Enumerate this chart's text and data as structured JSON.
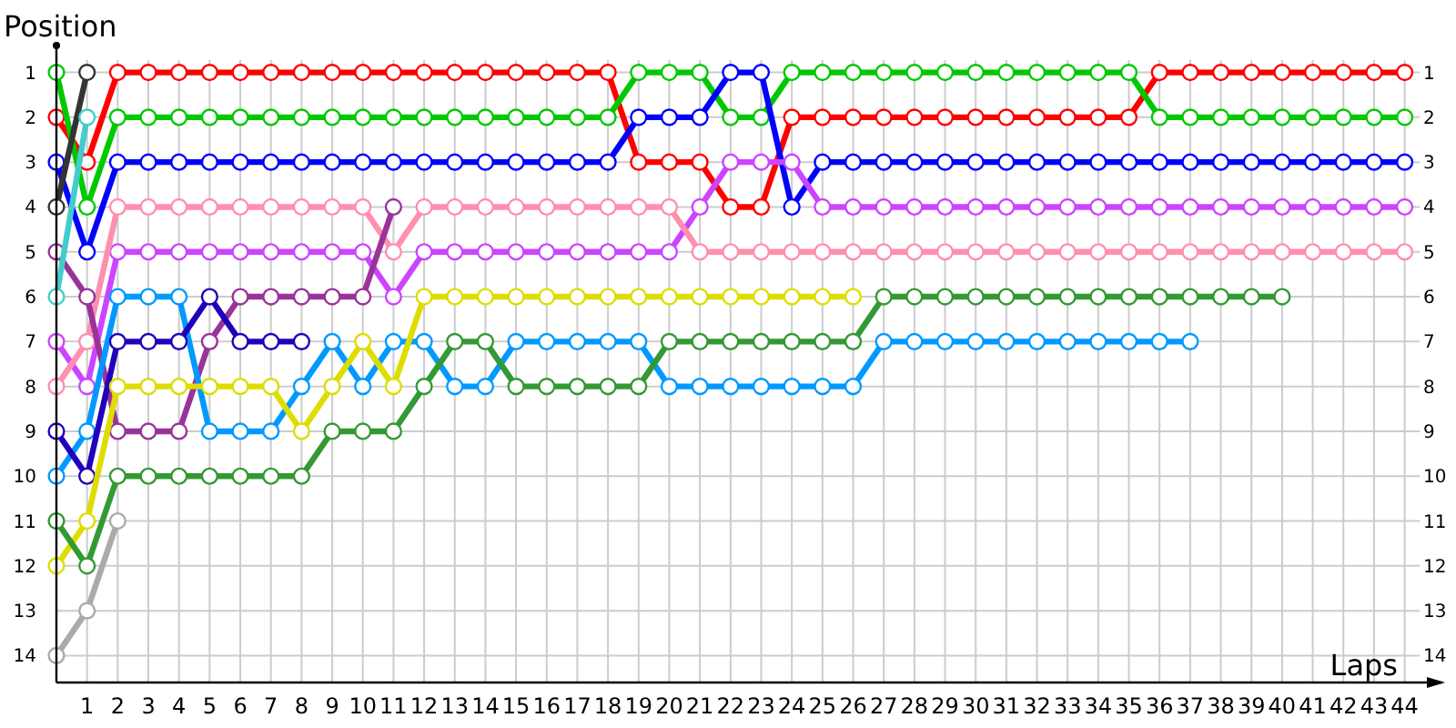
{
  "chart_data": {
    "type": "line",
    "xlabel": "Laps",
    "ylabel": "Position",
    "marker": "circle",
    "line_style": "solid",
    "grid": true,
    "x": [
      0,
      1,
      2,
      3,
      4,
      5,
      6,
      7,
      8,
      9,
      10,
      11,
      12,
      13,
      14,
      15,
      16,
      17,
      18,
      19,
      20,
      21,
      22,
      23,
      24,
      25,
      26,
      27,
      28,
      29,
      30,
      31,
      32,
      33,
      34,
      35,
      36,
      37,
      38,
      39,
      40,
      41,
      42,
      43,
      44
    ],
    "xlim": [
      0,
      45.2
    ],
    "xticks": [
      1,
      2,
      3,
      4,
      5,
      6,
      7,
      8,
      9,
      10,
      11,
      12,
      13,
      14,
      15,
      16,
      17,
      18,
      19,
      20,
      21,
      22,
      23,
      24,
      25,
      26,
      27,
      28,
      29,
      30,
      31,
      32,
      33,
      34,
      35,
      36,
      37,
      38,
      39,
      40,
      41,
      42,
      43,
      44
    ],
    "ylim": [
      14.6,
      0.4
    ],
    "yticks": [
      1,
      2,
      3,
      4,
      5,
      6,
      7,
      8,
      9,
      10,
      11,
      12,
      13,
      14
    ],
    "y2lim": [
      14.6,
      0.4
    ],
    "y2ticks": [
      1,
      2,
      3,
      4,
      5,
      6,
      7,
      8,
      9,
      10,
      11,
      12,
      13,
      14
    ],
    "series": [
      {
        "color": "#ff0000",
        "values": [
          2,
          3,
          1,
          1,
          1,
          1,
          1,
          1,
          1,
          1,
          1,
          1,
          1,
          1,
          1,
          1,
          1,
          1,
          1,
          3,
          3,
          3,
          4,
          4,
          2,
          2,
          2,
          2,
          2,
          2,
          2,
          2,
          2,
          2,
          2,
          2,
          1,
          1,
          1,
          1,
          1,
          1,
          1,
          1,
          1
        ]
      },
      {
        "color": "#00c800",
        "values": [
          1,
          4,
          2,
          2,
          2,
          2,
          2,
          2,
          2,
          2,
          2,
          2,
          2,
          2,
          2,
          2,
          2,
          2,
          2,
          1,
          1,
          1,
          2,
          2,
          1,
          1,
          1,
          1,
          1,
          1,
          1,
          1,
          1,
          1,
          1,
          1,
          2,
          2,
          2,
          2,
          2,
          2,
          2,
          2,
          2
        ]
      },
      {
        "color": "#0000ff",
        "values": [
          3,
          5,
          3,
          3,
          3,
          3,
          3,
          3,
          3,
          3,
          3,
          3,
          3,
          3,
          3,
          3,
          3,
          3,
          3,
          2,
          2,
          2,
          1,
          1,
          4,
          3,
          3,
          3,
          3,
          3,
          3,
          3,
          3,
          3,
          3,
          3,
          3,
          3,
          3,
          3,
          3,
          3,
          3,
          3,
          3
        ]
      },
      {
        "color": "#cc44ff",
        "values": [
          7,
          8,
          5,
          5,
          5,
          5,
          5,
          5,
          5,
          5,
          5,
          6,
          5,
          5,
          5,
          5,
          5,
          5,
          5,
          5,
          5,
          4,
          3,
          3,
          3,
          4,
          4,
          4,
          4,
          4,
          4,
          4,
          4,
          4,
          4,
          4,
          4,
          4,
          4,
          4,
          4,
          4,
          4,
          4,
          4
        ]
      },
      {
        "color": "#ff8fae",
        "values": [
          8,
          7,
          4,
          4,
          4,
          4,
          4,
          4,
          4,
          4,
          4,
          5,
          4,
          4,
          4,
          4,
          4,
          4,
          4,
          4,
          4,
          5,
          5,
          5,
          5,
          5,
          5,
          5,
          5,
          5,
          5,
          5,
          5,
          5,
          5,
          5,
          5,
          5,
          5,
          5,
          5,
          5,
          5,
          5,
          5
        ]
      },
      {
        "color": "#993399",
        "values": [
          5,
          6,
          9,
          9,
          9,
          7,
          6,
          6,
          6,
          6,
          6,
          4,
          null,
          null,
          null,
          null,
          null,
          null,
          null,
          null,
          null,
          null,
          null,
          null,
          null,
          null,
          null,
          null,
          null,
          null,
          null,
          null,
          null,
          null,
          null,
          null,
          null,
          null,
          null,
          null,
          null,
          null,
          null,
          null,
          null
        ]
      },
      {
        "color": "#0099ff",
        "values": [
          10,
          9,
          6,
          6,
          6,
          9,
          9,
          9,
          8,
          7,
          8,
          7,
          7,
          8,
          8,
          7,
          7,
          7,
          7,
          7,
          8,
          8,
          8,
          8,
          8,
          8,
          8,
          7,
          7,
          7,
          7,
          7,
          7,
          7,
          7,
          7,
          7,
          7,
          null,
          null,
          null,
          null,
          null,
          null,
          null
        ]
      },
      {
        "color": "#2200bb",
        "values": [
          9,
          10,
          7,
          7,
          7,
          6,
          7,
          7,
          7,
          null,
          null,
          null,
          null,
          null,
          null,
          null,
          null,
          null,
          null,
          null,
          null,
          null,
          null,
          null,
          null,
          null,
          null,
          null,
          null,
          null,
          null,
          null,
          null,
          null,
          null,
          null,
          null,
          null,
          null,
          null,
          null,
          null,
          null,
          null,
          null
        ]
      },
      {
        "color": "#dddd00",
        "values": [
          12,
          11,
          8,
          8,
          8,
          8,
          8,
          8,
          9,
          8,
          7,
          8,
          6,
          6,
          6,
          6,
          6,
          6,
          6,
          6,
          6,
          6,
          6,
          6,
          6,
          6,
          6,
          null,
          null,
          null,
          null,
          null,
          null,
          null,
          null,
          null,
          null,
          null,
          null,
          null,
          null,
          null,
          null,
          null,
          null
        ]
      },
      {
        "color": "#339933",
        "values": [
          11,
          12,
          10,
          10,
          10,
          10,
          10,
          10,
          10,
          9,
          9,
          9,
          8,
          7,
          7,
          8,
          8,
          8,
          8,
          8,
          7,
          7,
          7,
          7,
          7,
          7,
          7,
          6,
          6,
          6,
          6,
          6,
          6,
          6,
          6,
          6,
          6,
          6,
          6,
          6,
          6,
          null,
          null,
          null,
          null
        ]
      },
      {
        "color": "#aaaaaa",
        "values": [
          14,
          13,
          11,
          null,
          null,
          null,
          null,
          null,
          null,
          null,
          null,
          null,
          null,
          null,
          null,
          null,
          null,
          null,
          null,
          null,
          null,
          null,
          null,
          null,
          null,
          null,
          null,
          null,
          null,
          null,
          null,
          null,
          null,
          null,
          null,
          null,
          null,
          null,
          null,
          null,
          null,
          null,
          null,
          null,
          null
        ]
      },
      {
        "color": "#333333",
        "values": [
          4,
          1,
          null,
          null,
          null,
          null,
          null,
          null,
          null,
          null,
          null,
          null,
          null,
          null,
          null,
          null,
          null,
          null,
          null,
          null,
          null,
          null,
          null,
          null,
          null,
          null,
          null,
          null,
          null,
          null,
          null,
          null,
          null,
          null,
          null,
          null,
          null,
          null,
          null,
          null,
          null,
          null,
          null,
          null,
          null
        ]
      },
      {
        "color": "#44cccc",
        "values": [
          6,
          2,
          null,
          null,
          null,
          null,
          null,
          null,
          null,
          null,
          null,
          null,
          null,
          null,
          null,
          null,
          null,
          null,
          null,
          null,
          null,
          null,
          null,
          null,
          null,
          null,
          null,
          null,
          null,
          null,
          null,
          null,
          null,
          null,
          null,
          null,
          null,
          null,
          null,
          null,
          null,
          null,
          null,
          null,
          null
        ]
      }
    ]
  }
}
